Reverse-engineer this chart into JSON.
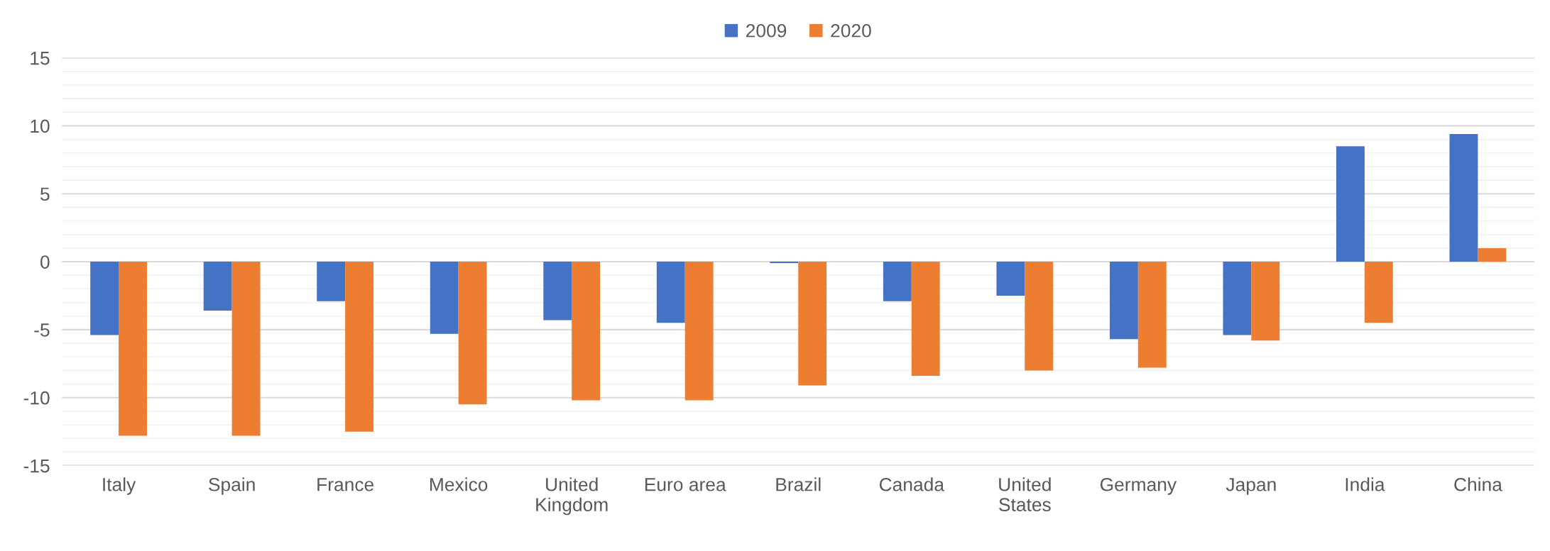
{
  "chart_data": {
    "type": "bar",
    "categories": [
      "Italy",
      "Spain",
      "France",
      "Mexico",
      "United\nKingdom",
      "Euro area",
      "Brazil",
      "Canada",
      "United\nStates",
      "Germany",
      "Japan",
      "India",
      "China"
    ],
    "series": [
      {
        "name": "2009",
        "color": "#4472c4",
        "values": [
          -5.4,
          -3.6,
          -2.9,
          -5.3,
          -4.3,
          -4.5,
          -0.1,
          -2.9,
          -2.5,
          -5.7,
          -5.4,
          8.5,
          9.4
        ]
      },
      {
        "name": "2020",
        "color": "#ed7d31",
        "values": [
          -12.8,
          -12.8,
          -12.5,
          -10.5,
          -10.2,
          -10.2,
          -9.1,
          -8.4,
          -8.0,
          -7.8,
          -5.8,
          -4.5,
          1.0
        ]
      }
    ],
    "ylim": [
      -15,
      15
    ],
    "yticks": [
      -15,
      -10,
      -5,
      0,
      5,
      10,
      15
    ],
    "grid": "y",
    "legend": "top"
  }
}
